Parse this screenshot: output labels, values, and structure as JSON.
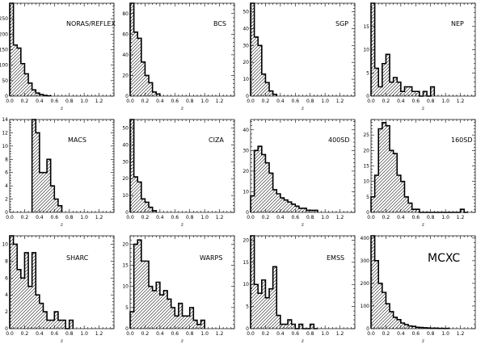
{
  "chart_data": [
    {
      "type": "histogram",
      "title": "NORAS/REFLEX",
      "xlabel": "z",
      "ylabel": "",
      "xlim": [
        0,
        1.4
      ],
      "ylim": [
        0,
        300
      ],
      "xticks": [
        0.0,
        0.2,
        0.4,
        0.6,
        0.8,
        1.0,
        1.2
      ],
      "xtick_labels": [
        "0.0",
        "0.2",
        "0.4",
        "0.6",
        "0.8",
        "1.0",
        "1.2"
      ],
      "yticks": [
        0,
        50,
        100,
        150,
        200,
        250
      ],
      "ytick_labels": [
        "0",
        "50",
        "100",
        "150",
        "200",
        "250"
      ],
      "bin_width": 0.05,
      "bin_starts": [
        0.0,
        0.05,
        0.1,
        0.15,
        0.2,
        0.25,
        0.3,
        0.35,
        0.4,
        0.45,
        0.5
      ],
      "values": [
        300,
        165,
        155,
        105,
        72,
        42,
        20,
        10,
        5,
        2,
        1
      ]
    },
    {
      "type": "histogram",
      "title": "BCS",
      "xlabel": "z",
      "ylabel": "",
      "xlim": [
        0,
        1.4
      ],
      "ylim": [
        0,
        90
      ],
      "xticks": [
        0.0,
        0.2,
        0.4,
        0.6,
        0.8,
        1.0,
        1.2
      ],
      "xtick_labels": [
        "0.0",
        "0.2",
        "0.4",
        "0.6",
        "0.8",
        "1.0",
        "1.2"
      ],
      "yticks": [
        0,
        20,
        40,
        60,
        80
      ],
      "ytick_labels": [
        "0",
        "20",
        "40",
        "60",
        "80"
      ],
      "bin_width": 0.05,
      "bin_starts": [
        0.0,
        0.05,
        0.1,
        0.15,
        0.2,
        0.25,
        0.3,
        0.35
      ],
      "values": [
        90,
        62,
        56,
        33,
        20,
        13,
        4,
        2
      ]
    },
    {
      "type": "histogram",
      "title": "SGP",
      "xlabel": "z",
      "ylabel": "",
      "xlim": [
        0,
        1.4
      ],
      "ylim": [
        0,
        55
      ],
      "xticks": [
        0.0,
        0.2,
        0.4,
        0.6,
        0.8,
        1.0,
        1.2
      ],
      "xtick_labels": [
        "0.0",
        "0.2",
        "0.4",
        "0.6",
        "0.8",
        "1.0",
        "1.2"
      ],
      "yticks": [
        0,
        10,
        20,
        30,
        40,
        50
      ],
      "ytick_labels": [
        "0",
        "10",
        "20",
        "30",
        "40",
        "50"
      ],
      "bin_width": 0.05,
      "bin_starts": [
        0.0,
        0.05,
        0.1,
        0.15,
        0.2,
        0.25,
        0.3
      ],
      "values": [
        55,
        35,
        30,
        13,
        8,
        3,
        1
      ]
    },
    {
      "type": "histogram",
      "title": "NEP",
      "xlabel": "z",
      "ylabel": "",
      "xlim": [
        0,
        1.4
      ],
      "ylim": [
        0,
        20
      ],
      "xticks": [
        0.0,
        0.2,
        0.4,
        0.6,
        0.8,
        1.0,
        1.2
      ],
      "xtick_labels": [
        "0.0",
        "0.2",
        "0.4",
        "0.6",
        "0.8",
        "1.0",
        "1.2"
      ],
      "yticks": [
        0,
        5,
        10,
        15
      ],
      "ytick_labels": [
        "0",
        "5",
        "10",
        "15"
      ],
      "bin_width": 0.05,
      "bin_starts": [
        0.0,
        0.05,
        0.1,
        0.15,
        0.2,
        0.25,
        0.3,
        0.35,
        0.4,
        0.45,
        0.5,
        0.55,
        0.6,
        0.65,
        0.7,
        0.75,
        0.8
      ],
      "values": [
        20,
        6,
        2,
        7,
        9,
        3,
        4,
        3,
        1,
        2,
        2,
        1,
        1,
        0,
        1,
        0,
        2
      ]
    },
    {
      "type": "histogram",
      "title": "MACS",
      "xlabel": "z",
      "ylabel": "",
      "xlim": [
        0,
        1.4
      ],
      "ylim": [
        0,
        14
      ],
      "xticks": [
        0.0,
        0.2,
        0.4,
        0.6,
        0.8,
        1.0,
        1.2
      ],
      "xtick_labels": [
        "0.0",
        "0.2",
        "0.4",
        "0.6",
        "0.8",
        "1.0",
        "1.2"
      ],
      "yticks": [
        0,
        2,
        4,
        6,
        8,
        10,
        12,
        14
      ],
      "ytick_labels": [
        "0",
        "2",
        "4",
        "6",
        "8",
        "10",
        "12",
        "14"
      ],
      "bin_width": 0.05,
      "bin_starts": [
        0.3,
        0.35,
        0.4,
        0.45,
        0.5,
        0.55,
        0.6,
        0.65
      ],
      "values": [
        14,
        12,
        6,
        6,
        8,
        4,
        2,
        1
      ]
    },
    {
      "type": "histogram",
      "title": "CIZA",
      "xlabel": "z",
      "ylabel": "",
      "xlim": [
        0,
        1.4
      ],
      "ylim": [
        0,
        55
      ],
      "xticks": [
        0.0,
        0.2,
        0.4,
        0.6,
        0.8,
        1.0,
        1.2
      ],
      "xtick_labels": [
        "0.0",
        "0.2",
        "0.4",
        "0.6",
        "0.8",
        "1.0",
        "1.2"
      ],
      "yticks": [
        0,
        10,
        20,
        30,
        40,
        50
      ],
      "ytick_labels": [
        "0",
        "10",
        "20",
        "30",
        "40",
        "50"
      ],
      "bin_width": 0.05,
      "bin_starts": [
        0.0,
        0.05,
        0.1,
        0.15,
        0.2,
        0.25,
        0.3
      ],
      "values": [
        55,
        21,
        18,
        8,
        6,
        3,
        1
      ]
    },
    {
      "type": "histogram",
      "title": "400SD",
      "xlabel": "z",
      "ylabel": "",
      "xlim": [
        0,
        1.4
      ],
      "ylim": [
        0,
        45
      ],
      "xticks": [
        0.0,
        0.2,
        0.4,
        0.6,
        0.8,
        1.0,
        1.2
      ],
      "xtick_labels": [
        "0.0",
        "0.2",
        "0.4",
        "0.6",
        "0.8",
        "1.0",
        "1.2"
      ],
      "yticks": [
        0,
        10,
        20,
        30,
        40
      ],
      "ytick_labels": [
        "0",
        "10",
        "20",
        "30",
        "40"
      ],
      "bin_width": 0.05,
      "bin_starts": [
        0.0,
        0.05,
        0.1,
        0.15,
        0.2,
        0.25,
        0.3,
        0.35,
        0.4,
        0.45,
        0.5,
        0.55,
        0.6,
        0.65,
        0.7,
        0.75,
        0.8,
        0.85
      ],
      "values": [
        8,
        30,
        32,
        28,
        24,
        19,
        11,
        9,
        7,
        6,
        5,
        4,
        3,
        2,
        2,
        1,
        1,
        1
      ]
    },
    {
      "type": "histogram",
      "title": "160SD",
      "xlabel": "z",
      "ylabel": "",
      "xlim": [
        0,
        1.4
      ],
      "ylim": [
        0,
        30
      ],
      "xticks": [
        0.0,
        0.2,
        0.4,
        0.6,
        0.8,
        1.0,
        1.2
      ],
      "xtick_labels": [
        "0.0",
        "0.2",
        "0.4",
        "0.6",
        "0.8",
        "1.0",
        "1.2"
      ],
      "yticks": [
        0,
        5,
        10,
        15,
        20,
        25
      ],
      "ytick_labels": [
        "0",
        "5",
        "10",
        "15",
        "20",
        "25"
      ],
      "bin_width": 0.05,
      "bin_starts": [
        0.0,
        0.05,
        0.1,
        0.15,
        0.2,
        0.25,
        0.3,
        0.35,
        0.4,
        0.45,
        0.5,
        0.55,
        0.6,
        0.65,
        0.7,
        0.75,
        0.8,
        0.85,
        0.9,
        0.95,
        1.0,
        1.05,
        1.1,
        1.15,
        1.2,
        1.25
      ],
      "values": [
        5,
        12,
        27,
        29,
        28,
        20,
        19,
        12,
        10,
        5,
        3,
        1,
        1,
        0,
        0,
        0,
        0,
        0,
        0,
        0,
        0,
        0,
        0,
        0,
        1,
        0
      ]
    },
    {
      "type": "histogram",
      "title": "SHARC",
      "xlabel": "z",
      "ylabel": "",
      "xlim": [
        0,
        1.4
      ],
      "ylim": [
        0,
        11
      ],
      "xticks": [
        0.0,
        0.2,
        0.4,
        0.6,
        0.8,
        1.0,
        1.2
      ],
      "xtick_labels": [
        "0.0",
        "0.2",
        "0.4",
        "0.6",
        "0.8",
        "1.0",
        "1.2"
      ],
      "yticks": [
        0,
        2,
        4,
        6,
        8,
        10
      ],
      "ytick_labels": [
        "0",
        "2",
        "4",
        "6",
        "8",
        "10"
      ],
      "bin_width": 0.05,
      "bin_starts": [
        0.0,
        0.05,
        0.1,
        0.15,
        0.2,
        0.25,
        0.3,
        0.35,
        0.4,
        0.45,
        0.5,
        0.55,
        0.6,
        0.65,
        0.7,
        0.75,
        0.8
      ],
      "values": [
        11,
        10,
        7,
        6,
        9,
        5,
        9,
        4,
        3,
        2,
        1,
        1,
        2,
        1,
        1,
        0,
        1
      ]
    },
    {
      "type": "histogram",
      "title": "WARPS",
      "xlabel": "z",
      "ylabel": "",
      "xlim": [
        0,
        1.4
      ],
      "ylim": [
        0,
        22
      ],
      "xticks": [
        0.0,
        0.2,
        0.4,
        0.6,
        0.8,
        1.0,
        1.2
      ],
      "xtick_labels": [
        "0.0",
        "0.2",
        "0.4",
        "0.6",
        "0.8",
        "1.0",
        "1.2"
      ],
      "yticks": [
        0,
        5,
        10,
        15,
        20
      ],
      "ytick_labels": [
        "0",
        "5",
        "10",
        "15",
        "20"
      ],
      "bin_width": 0.05,
      "bin_starts": [
        0.0,
        0.05,
        0.1,
        0.15,
        0.2,
        0.25,
        0.3,
        0.35,
        0.4,
        0.45,
        0.5,
        0.55,
        0.6,
        0.65,
        0.7,
        0.75,
        0.8,
        0.85,
        0.9,
        0.95
      ],
      "values": [
        4,
        20,
        21,
        16,
        16,
        10,
        9,
        11,
        8,
        9,
        7,
        5,
        3,
        6,
        3,
        3,
        5,
        2,
        1,
        2
      ]
    },
    {
      "type": "histogram",
      "title": "EMSS",
      "xlabel": "z",
      "ylabel": "",
      "xlim": [
        0,
        1.4
      ],
      "ylim": [
        0,
        21
      ],
      "xticks": [
        0.0,
        0.2,
        0.4,
        0.6,
        0.8,
        1.0,
        1.2
      ],
      "xtick_labels": [
        "0.0",
        "0.2",
        "0.4",
        "0.6",
        "0.8",
        "1.0",
        "1.2"
      ],
      "yticks": [
        0,
        5,
        10,
        15,
        20
      ],
      "ytick_labels": [
        "0",
        "5",
        "10",
        "15",
        "20"
      ],
      "bin_width": 0.05,
      "bin_starts": [
        0.0,
        0.05,
        0.1,
        0.15,
        0.2,
        0.25,
        0.3,
        0.35,
        0.4,
        0.45,
        0.5,
        0.55,
        0.6,
        0.65,
        0.7,
        0.75,
        0.8,
        0.85
      ],
      "values": [
        21,
        10,
        8,
        11,
        7,
        9,
        14,
        3,
        1,
        1,
        2,
        1,
        0,
        1,
        0,
        0,
        1,
        0
      ]
    },
    {
      "type": "histogram",
      "title": "MCXC",
      "xlabel": "z",
      "ylabel": "",
      "xlim": [
        0,
        1.4
      ],
      "ylim": [
        0,
        410
      ],
      "xticks": [
        0.0,
        0.2,
        0.4,
        0.6,
        0.8,
        1.0,
        1.2
      ],
      "xtick_labels": [
        "0.0",
        "0.2",
        "0.4",
        "0.6",
        "0.8",
        "1.0",
        "1.2"
      ],
      "yticks": [
        0,
        100,
        200,
        300,
        400
      ],
      "ytick_labels": [
        "0",
        "100",
        "200",
        "300",
        "400"
      ],
      "bin_width": 0.05,
      "bin_starts": [
        0.0,
        0.05,
        0.1,
        0.15,
        0.2,
        0.25,
        0.3,
        0.35,
        0.4,
        0.45,
        0.5,
        0.55,
        0.6,
        0.65,
        0.7,
        0.75,
        0.8,
        0.85,
        0.9,
        0.95,
        1.0
      ],
      "values": [
        410,
        300,
        200,
        160,
        110,
        75,
        50,
        40,
        25,
        18,
        12,
        10,
        6,
        5,
        4,
        3,
        2,
        2,
        1,
        1,
        1
      ]
    }
  ]
}
